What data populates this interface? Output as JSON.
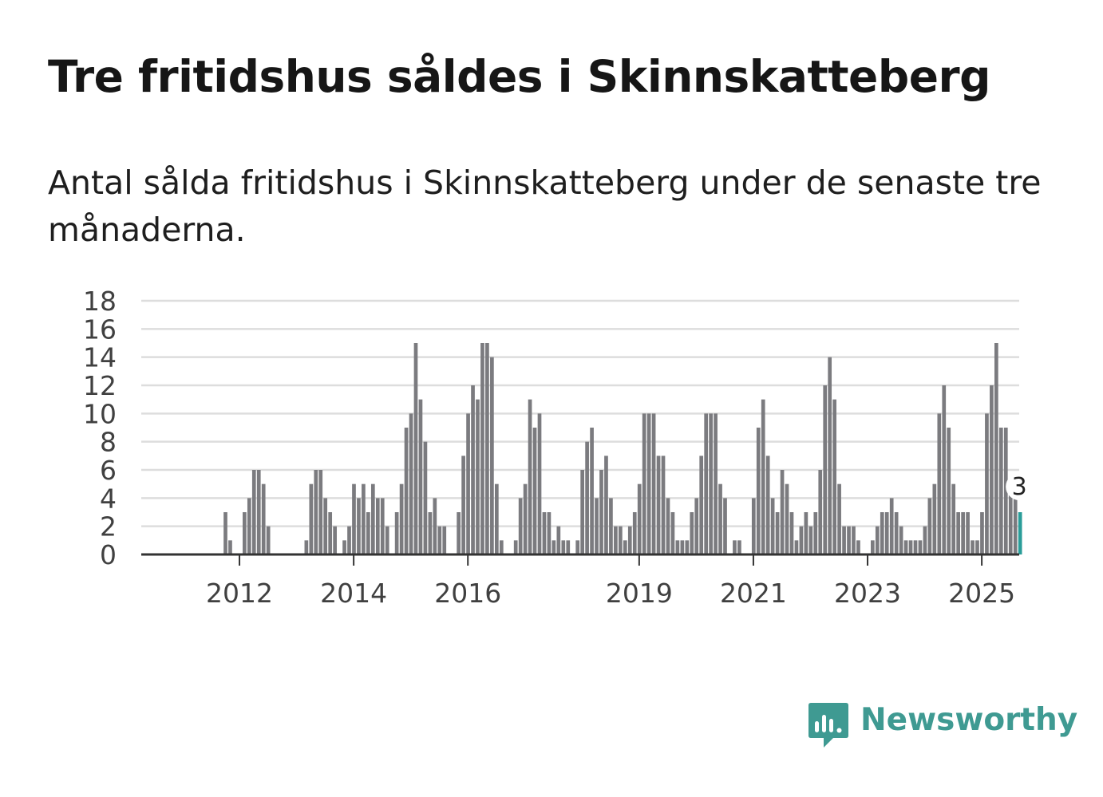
{
  "title": "Tre fritidshus såldes i Skinnskatteberg",
  "subtitle": "Antal sålda fritidshus i Skinnskatteberg under de senaste tre månaderna.",
  "brand": {
    "name": "Newsworthy",
    "icon": "newsworthy-logo-icon",
    "color": "#3f9a92"
  },
  "colors": {
    "bar": "#7b7b7f",
    "highlight": "#2a9d99",
    "grid": "#dddddd",
    "axis": "#333333"
  },
  "chart_data": {
    "type": "bar",
    "ylim": [
      0,
      18
    ],
    "yticks": [
      0,
      2,
      4,
      6,
      8,
      10,
      12,
      14,
      16,
      18
    ],
    "xtick_labels": [
      "2012",
      "2014",
      "2016",
      "2019",
      "2021",
      "2023",
      "2025"
    ],
    "grid": true,
    "highlight_last": true,
    "annotation": "3",
    "values": [
      0,
      0,
      0,
      0,
      0,
      0,
      0,
      0,
      0,
      3,
      1,
      0,
      0,
      3,
      4,
      6,
      6,
      5,
      2,
      0,
      0,
      0,
      0,
      0,
      0,
      0,
      1,
      5,
      6,
      6,
      4,
      3,
      2,
      0,
      1,
      2,
      5,
      4,
      5,
      3,
      5,
      4,
      4,
      2,
      0,
      3,
      5,
      9,
      10,
      15,
      11,
      8,
      3,
      4,
      2,
      2,
      0,
      0,
      3,
      7,
      10,
      12,
      11,
      15,
      15,
      14,
      5,
      1,
      0,
      0,
      1,
      4,
      5,
      11,
      9,
      10,
      3,
      3,
      1,
      2,
      1,
      1,
      0,
      1,
      6,
      8,
      9,
      4,
      6,
      7,
      4,
      2,
      2,
      1,
      2,
      3,
      5,
      10,
      10,
      10,
      7,
      7,
      4,
      3,
      1,
      1,
      1,
      3,
      4,
      7,
      10,
      10,
      10,
      5,
      4,
      0,
      1,
      1,
      0,
      0,
      4,
      9,
      11,
      7,
      4,
      3,
      6,
      5,
      3,
      1,
      2,
      3,
      2,
      3,
      6,
      12,
      14,
      11,
      5,
      2,
      2,
      2,
      1,
      0,
      0,
      1,
      2,
      3,
      3,
      4,
      3,
      2,
      1,
      1,
      1,
      1,
      2,
      4,
      5,
      10,
      12,
      9,
      5,
      3,
      3,
      3,
      1,
      1,
      3,
      10,
      12,
      15,
      9,
      9,
      5,
      4,
      3
    ]
  }
}
